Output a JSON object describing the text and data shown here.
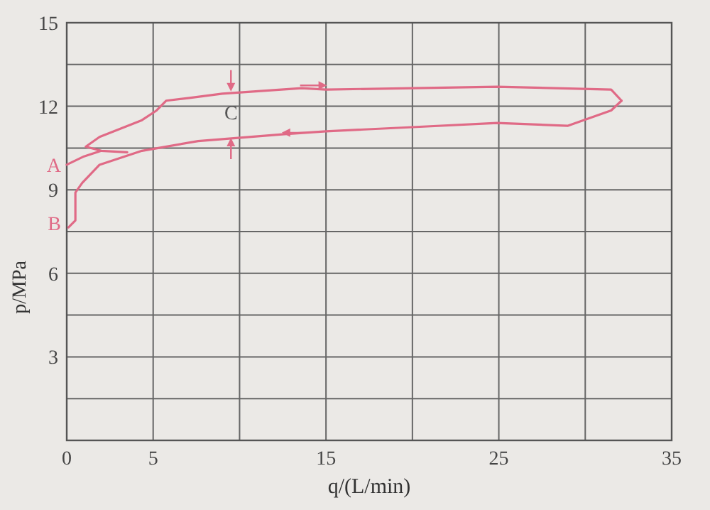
{
  "chart_data": {
    "type": "line",
    "xlabel": "q/(L/min)",
    "ylabel": "p/MPa",
    "xlim": [
      0,
      35
    ],
    "ylim": [
      0,
      15
    ],
    "xticks": [
      0,
      5,
      {
        "value": 10,
        "label": null
      },
      15,
      {
        "value": 20,
        "label": null
      },
      25,
      {
        "value": 30,
        "label": null
      },
      35
    ],
    "yticks": [
      {
        "value": 1.5,
        "label": null
      },
      3,
      {
        "value": 4.5,
        "label": null
      },
      6,
      {
        "value": 7.5,
        "label": null
      },
      9,
      {
        "value": 10.5,
        "label": null
      },
      12,
      {
        "value": 13.5,
        "label": null
      },
      15
    ],
    "grid": true,
    "marker": "none",
    "line_style": "solid",
    "series": [
      {
        "color": "#e06a86",
        "x": [
          0,
          1.0,
          2.0,
          3.5,
          2.0,
          1.1,
          1.9,
          4.35,
          5.2,
          5.75,
          7.1,
          9.0,
          13.6,
          15.0,
          24.9,
          31.5,
          32.1
        ],
        "values": [
          9.9,
          10.2,
          10.4,
          10.35,
          10.4,
          10.55,
          10.9,
          11.5,
          11.85,
          12.2,
          12.3,
          12.45,
          12.65,
          12.6,
          12.7,
          12.6,
          12.2
        ]
      },
      {
        "color": "#e06a86",
        "x": [
          32.1,
          31.5,
          29.0,
          24.9,
          20.0,
          15.0,
          12.6,
          7.6,
          4.35,
          1.9,
          0.9,
          0.5,
          0.5,
          0.1
        ],
        "values": [
          12.2,
          11.85,
          11.3,
          11.4,
          11.25,
          11.1,
          11.0,
          10.75,
          10.4,
          9.9,
          9.25,
          8.9,
          7.9,
          7.65
        ]
      }
    ],
    "annotations": [
      {
        "text": "A",
        "x": 0,
        "y": 9.9
      },
      {
        "text": "B",
        "x": 0,
        "y": 7.8
      },
      "C"
    ]
  }
}
